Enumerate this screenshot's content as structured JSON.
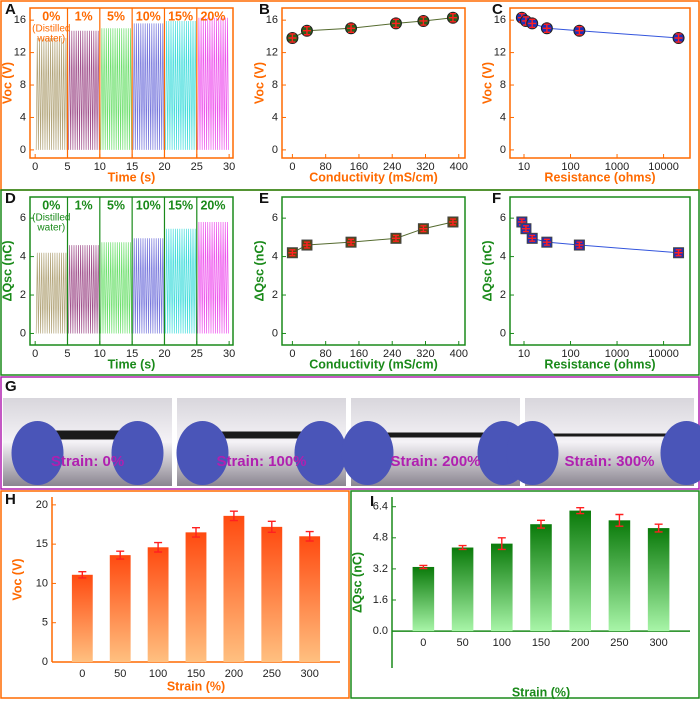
{
  "chart_data": [
    {
      "type": "signal",
      "panel": "A",
      "axis_color": "#ff6a00",
      "xlabel": "Time (s)",
      "ylabel": "Voc (V)",
      "categories": [
        "0%",
        "1%",
        "5%",
        "10%",
        "15%",
        "20%"
      ],
      "annotation": [
        "(Distilled",
        "water)"
      ],
      "bins": [
        0,
        5,
        10,
        15,
        20,
        25,
        30
      ],
      "values": [
        13.8,
        14.7,
        15.0,
        15.6,
        15.9,
        16.3
      ],
      "colors": [
        "#b3a57a",
        "#a0508c",
        "#6ee06e",
        "#7777dd",
        "#44dddd",
        "#ee55ee"
      ],
      "xlim": [
        -0.8,
        30.6
      ],
      "xticks": [
        0,
        5,
        10,
        15,
        20,
        25,
        30
      ],
      "ylim": [
        -1,
        17.5
      ],
      "yticks": [
        0,
        4,
        8,
        12,
        16
      ]
    },
    {
      "type": "scatter",
      "panel": "B",
      "axis_color": "#ff6a00",
      "xlabel": "Conductivity (mS/cm)",
      "ylabel": "Voc (V)",
      "marker": "circle",
      "color": "#2e5e1a",
      "line_color": "#556b2f",
      "x": [
        0,
        35,
        141,
        249,
        315,
        386
      ],
      "values": [
        13.8,
        14.7,
        15.0,
        15.6,
        15.9,
        16.3
      ],
      "errors": [
        0.5,
        0.5,
        0.5,
        0.5,
        0.5,
        0.5
      ],
      "xlim": [
        -25,
        415
      ],
      "xticks": [
        0,
        80,
        160,
        240,
        320,
        400
      ],
      "ylim": [
        -1,
        17.5
      ],
      "yticks": [
        0,
        4,
        8,
        12,
        16
      ]
    },
    {
      "type": "scatter",
      "panel": "C",
      "axis_color": "#ff6a00",
      "xlabel": "Resistance (ohms)",
      "ylabel": "Voc (V)",
      "marker": "circle",
      "color": "#1f2fb8",
      "line_color": "#3355dd",
      "xscale": "log",
      "x": [
        9,
        11,
        15,
        31,
        155,
        21000
      ],
      "values": [
        16.3,
        15.9,
        15.6,
        15.0,
        14.7,
        13.8
      ],
      "errors": [
        0.5,
        0.5,
        0.5,
        0.5,
        0.5,
        0.5
      ],
      "xlim": [
        5,
        37000
      ],
      "xticks": [
        10,
        100,
        1000,
        10000
      ],
      "ylim": [
        -1,
        17.5
      ],
      "yticks": [
        0,
        4,
        8,
        12,
        16
      ]
    },
    {
      "type": "signal",
      "panel": "D",
      "axis_color": "#1a8a1a",
      "xlabel": "Time (s)",
      "ylabel": "ΔQsc (nC)",
      "categories": [
        "0%",
        "1%",
        "5%",
        "10%",
        "15%",
        "20%"
      ],
      "annotation": [
        "(Distilled",
        "water)"
      ],
      "bins": [
        0,
        5,
        10,
        15,
        20,
        25,
        30
      ],
      "values": [
        4.2,
        4.6,
        4.75,
        4.95,
        5.45,
        5.8
      ],
      "colors": [
        "#b3a57a",
        "#a0508c",
        "#6ee06e",
        "#7777dd",
        "#44dddd",
        "#ee55ee"
      ],
      "xlim": [
        -0.8,
        30.6
      ],
      "xticks": [
        0,
        5,
        10,
        15,
        20,
        25,
        30
      ],
      "ylim": [
        -0.6,
        7.1
      ],
      "yticks": [
        0,
        2,
        4,
        6
      ]
    },
    {
      "type": "scatter",
      "panel": "E",
      "axis_color": "#1a8a1a",
      "xlabel": "Conductivity (mS/cm)",
      "ylabel": "ΔQsc (nC)",
      "marker": "square",
      "color": "#5a4a10",
      "line_color": "#556b2f",
      "x": [
        0,
        35,
        141,
        249,
        315,
        386
      ],
      "values": [
        4.2,
        4.6,
        4.75,
        4.95,
        5.45,
        5.8
      ],
      "errors": [
        0.15,
        0.15,
        0.15,
        0.15,
        0.15,
        0.15
      ],
      "xlim": [
        -25,
        415
      ],
      "xticks": [
        0,
        80,
        160,
        240,
        320,
        400
      ],
      "ylim": [
        -0.6,
        7.1
      ],
      "yticks": [
        0,
        2,
        4,
        6
      ]
    },
    {
      "type": "scatter",
      "panel": "F",
      "axis_color": "#1a8a1a",
      "xlabel": "Resistance (ohms)",
      "ylabel": "ΔQsc (nC)",
      "marker": "square",
      "color": "#1f2fb8",
      "line_color": "#3355dd",
      "xscale": "log",
      "x": [
        9,
        11,
        15,
        31,
        155,
        21000
      ],
      "values": [
        5.8,
        5.45,
        4.95,
        4.75,
        4.6,
        4.2
      ],
      "errors": [
        0.15,
        0.15,
        0.15,
        0.15,
        0.15,
        0.15
      ],
      "xlim": [
        5,
        37000
      ],
      "xticks": [
        10,
        100,
        1000,
        10000
      ],
      "ylim": [
        -0.6,
        7.1
      ],
      "yticks": [
        0,
        2,
        4,
        6
      ]
    },
    {
      "type": "bar",
      "panel": "H",
      "axis_color": "#ff6a00",
      "xlabel": "Strain (%)",
      "ylabel": "Voc (V)",
      "gradient": [
        "#ff4a10",
        "#ffc080"
      ],
      "categories": [
        "0",
        "50",
        "100",
        "150",
        "200",
        "250",
        "300"
      ],
      "values": [
        11.1,
        13.6,
        14.6,
        16.5,
        18.6,
        17.2,
        16.0
      ],
      "errors": [
        0.4,
        0.5,
        0.6,
        0.6,
        0.6,
        0.7,
        0.6
      ],
      "ylim": [
        0,
        21
      ],
      "yticks": [
        0,
        5,
        10,
        15,
        20
      ]
    },
    {
      "type": "bar",
      "panel": "I",
      "axis_color": "#1a8a1a",
      "xlabel": "Strain (%)",
      "ylabel": "ΔQsc (nC)",
      "gradient": [
        "#0a7a0a",
        "#a8f5a8"
      ],
      "categories": [
        "0",
        "50",
        "100",
        "150",
        "200",
        "250",
        "300"
      ],
      "values": [
        3.3,
        4.3,
        4.5,
        5.5,
        6.2,
        5.7,
        5.3
      ],
      "errors": [
        0.08,
        0.1,
        0.3,
        0.2,
        0.15,
        0.3,
        0.2
      ],
      "ylim": [
        -1.9,
        6.9
      ],
      "yticks": [
        {
          "value": 0,
          "label": "0.0"
        },
        1.6,
        3.2,
        4.8,
        6.4
      ]
    }
  ],
  "photos": {
    "panel": "G",
    "captions": [
      "Strain: 0%",
      "Strain: 100%",
      "Strain: 200%",
      "Strain: 300%"
    ]
  }
}
